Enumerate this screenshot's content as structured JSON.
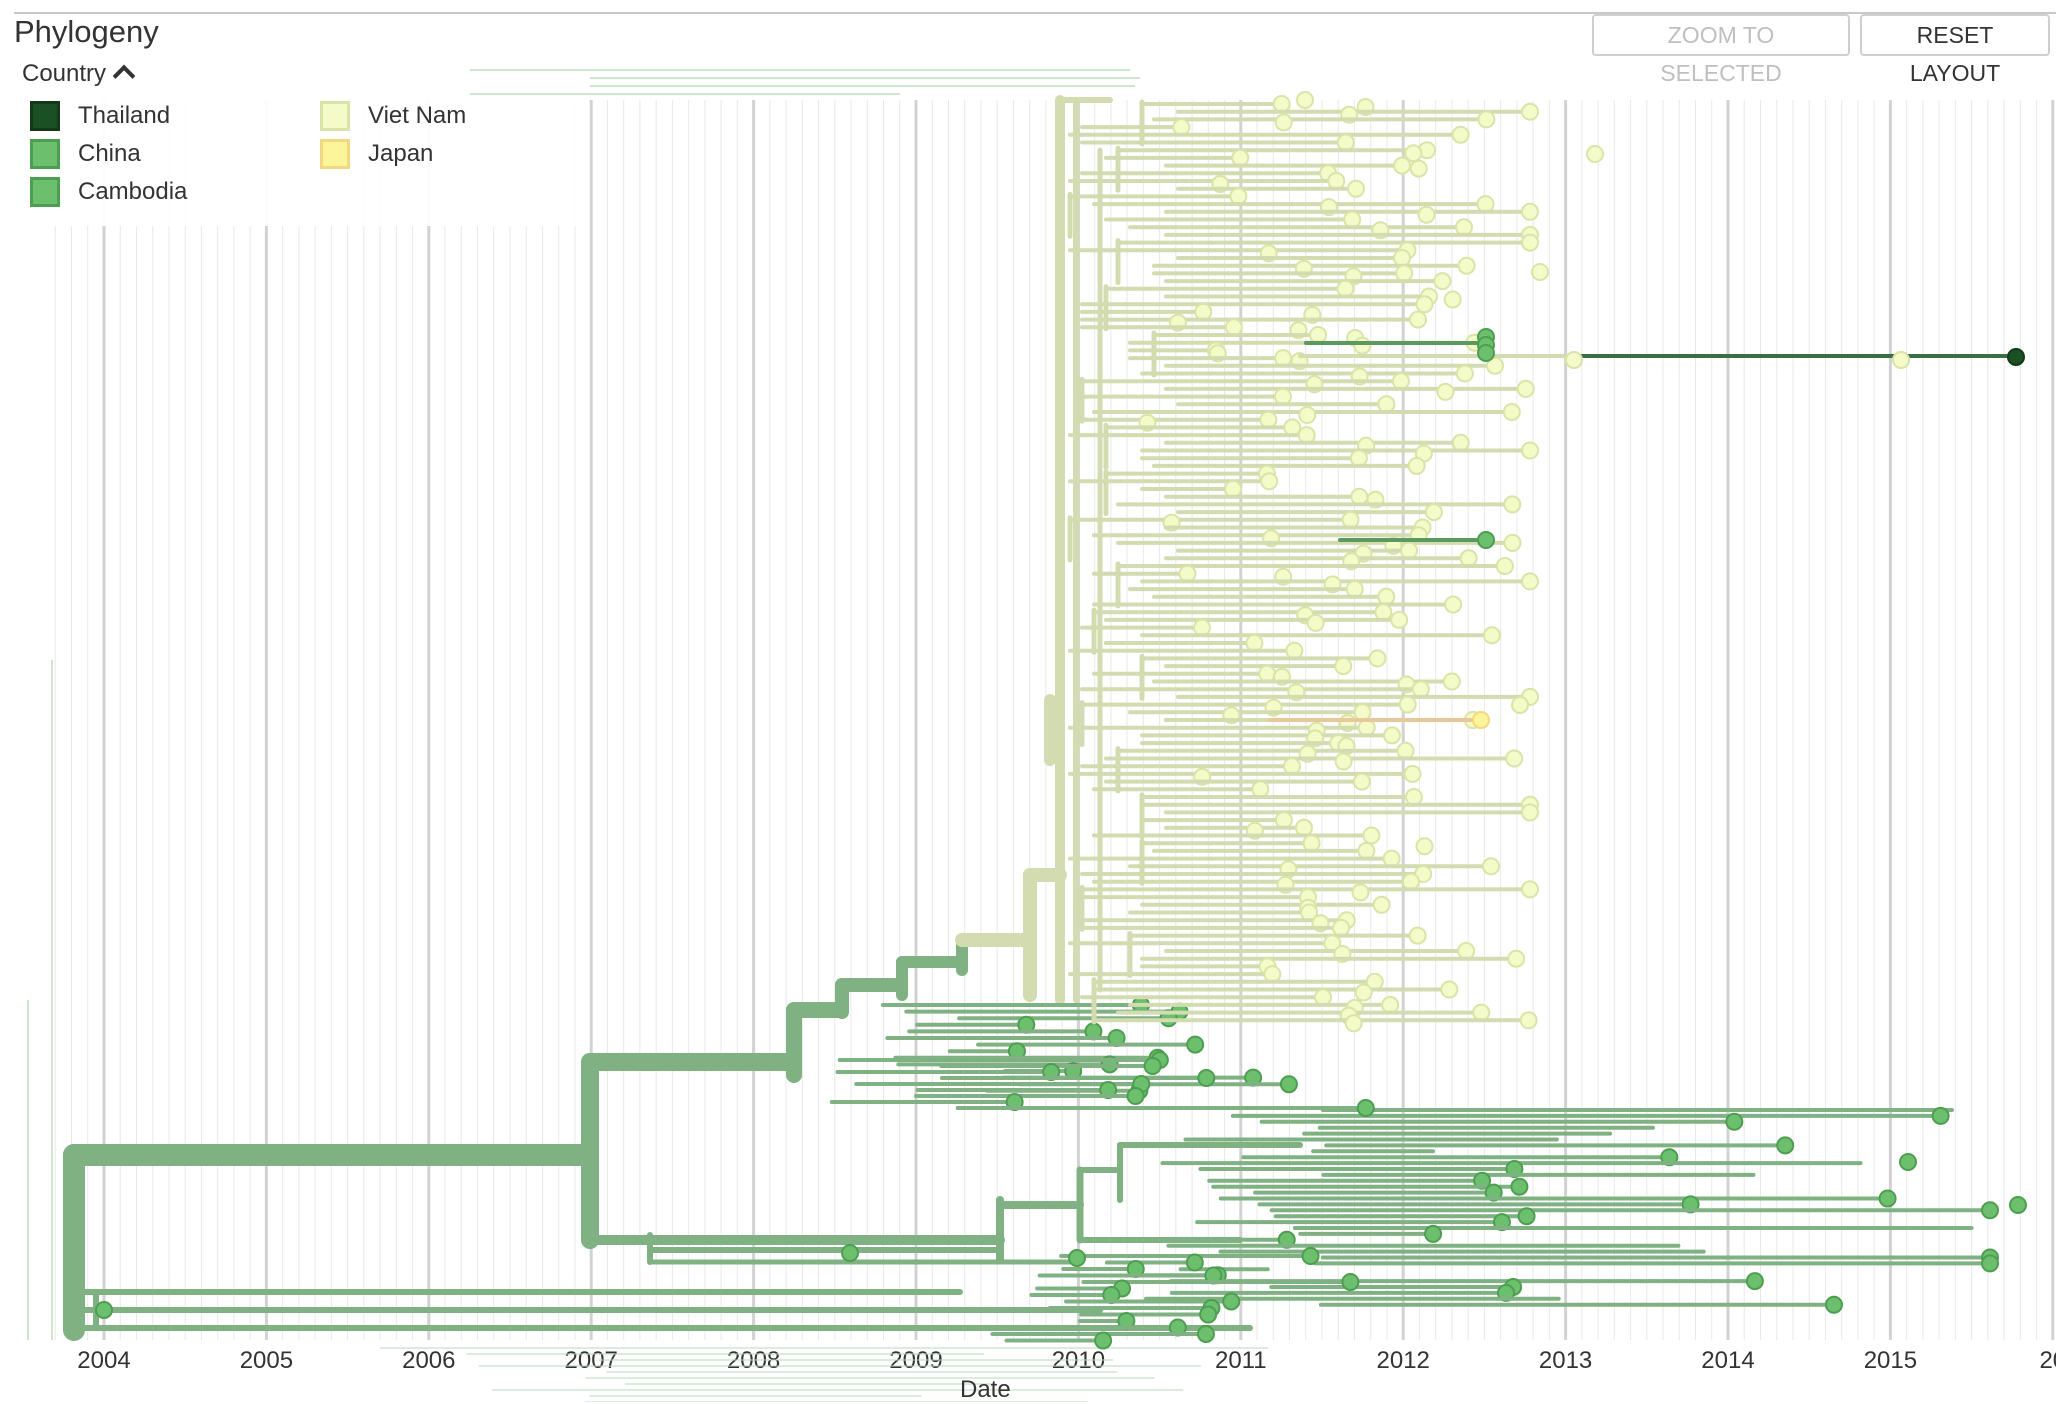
{
  "header": {
    "title": "Phylogeny",
    "zoom_label": "ZOOM TO SELECTED",
    "reset_label": "RESET LAYOUT"
  },
  "legend": {
    "title": "Country",
    "items": [
      {
        "label": "Thailand",
        "fill": "#1b4f24",
        "stroke": "#123a18"
      },
      {
        "label": "China",
        "fill": "#6cbf6c",
        "stroke": "#4e9e52"
      },
      {
        "label": "Cambodia",
        "fill": "#6cbf6c",
        "stroke": "#4e9e52"
      },
      {
        "label": "Viet Nam",
        "fill": "#f4fbc8",
        "stroke": "#d9e4a8"
      },
      {
        "label": "Japan",
        "fill": "#fdf59a",
        "stroke": "#f2d880"
      }
    ]
  },
  "chart_data": {
    "type": "tree",
    "xlabel": "Date",
    "ticks": [
      "2004",
      "2005",
      "2006",
      "2007",
      "2008",
      "2009",
      "2010",
      "2011",
      "2012",
      "2013",
      "2014",
      "2015",
      "20"
    ],
    "x_range": [
      2003.65,
      2016.0
    ],
    "colors": {
      "thailand": "#1b4f24",
      "china": "#6cbf6c",
      "viet_nam": "#f4fbc8",
      "japan": "#fdf59a",
      "branch_green": "#7fb183",
      "branch_light": "#d2dcb0"
    }
  }
}
